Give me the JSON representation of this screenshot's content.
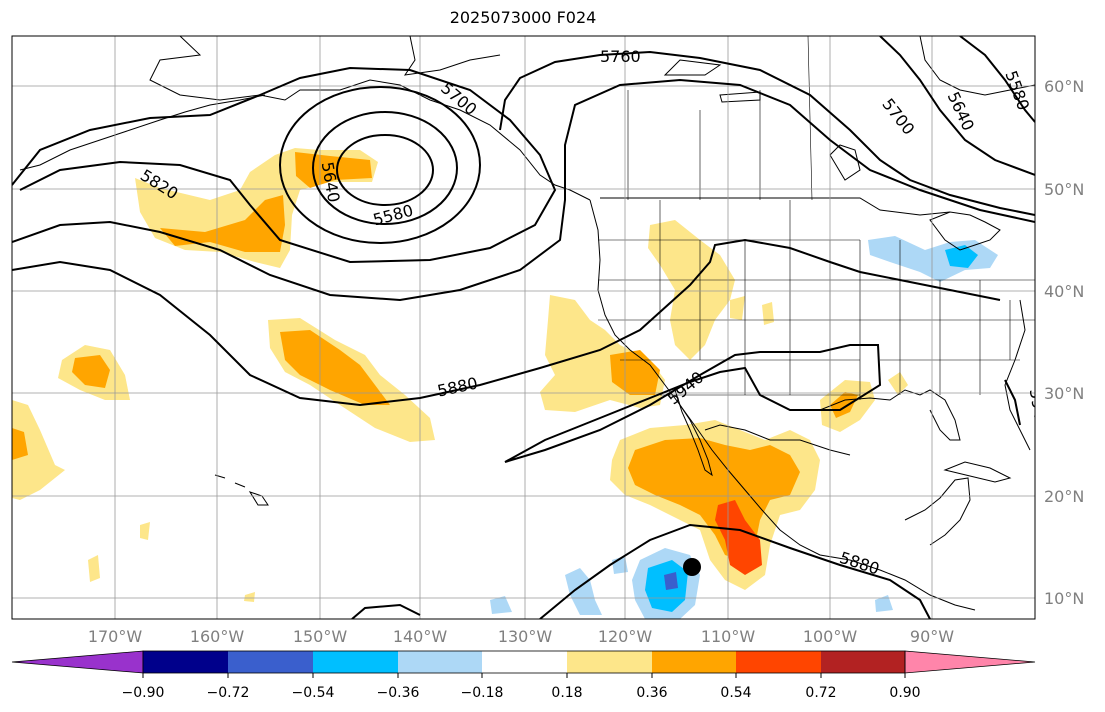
{
  "title": "2025073000 F024",
  "lat_labels": [
    "60°N",
    "50°N",
    "40°N",
    "30°N",
    "20°N",
    "10°N"
  ],
  "lon_labels": [
    "170°W",
    "160°W",
    "150°W",
    "140°W",
    "130°W",
    "120°W",
    "110°W",
    "100°W",
    "90°W"
  ],
  "contour_labels": [
    "5760",
    "5700",
    "5640",
    "5580",
    "5580",
    "5640",
    "5700",
    "5820",
    "5880",
    "5940",
    "5880",
    "5940"
  ],
  "colorbar": {
    "tick_labels": [
      "−0.90",
      "−0.72",
      "−0.54",
      "−0.36",
      "−0.18",
      "0.18",
      "0.36",
      "0.54",
      "0.72",
      "0.90"
    ],
    "colors": [
      "#9932cc",
      "#00008b",
      "#3a5fcd",
      "#00bfff",
      "#add8f6",
      "#ffffff",
      "#fde68a",
      "#ffa500",
      "#ff4500",
      "#b22222",
      "#ff85aa"
    ]
  },
  "shading_colors": {
    "pos_low": "#fde68a",
    "pos_mid": "#ffa500",
    "pos_high": "#ff4500",
    "neg_low": "#add8f6",
    "neg_mid": "#00bfff",
    "neg_high": "#3a5fcd"
  },
  "marker": "storm-center-dot"
}
